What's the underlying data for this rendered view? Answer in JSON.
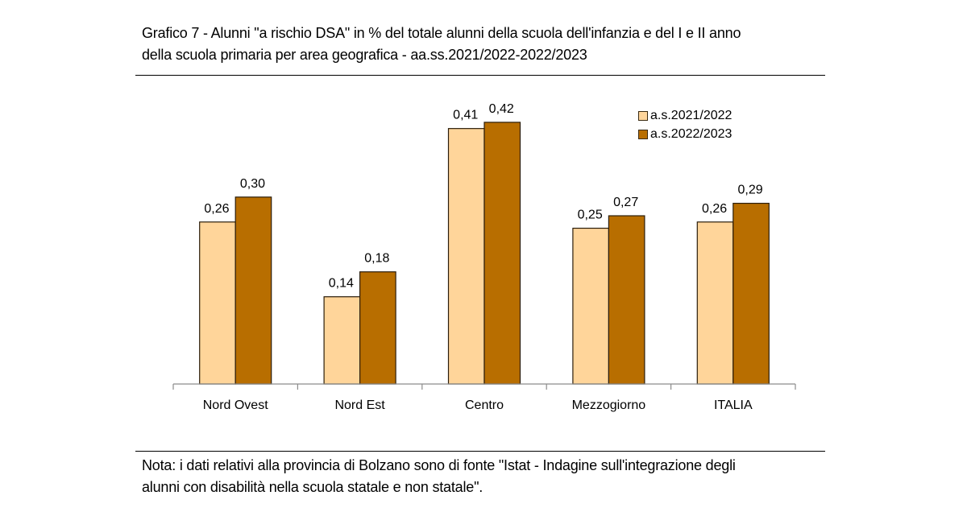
{
  "header": {
    "title_line1": "Grafico 7 - Alunni \"a rischio DSA\" in % del totale alunni della scuola dell'infanzia e del I e II anno",
    "title_line2": "della scuola primaria per area geografica - aa.ss.2021/2022-2022/2023"
  },
  "footer": {
    "note_line1": "Nota: i dati relativi alla provincia di Bolzano sono di fonte \"Istat - Indagine sull'integrazione degli",
    "note_line2": "alunni con disabilità nella scuola statale e non statale\"."
  },
  "chart_data": {
    "type": "bar",
    "title": "Grafico 7 - Alunni \"a rischio DSA\" in % del totale alunni della scuola dell'infanzia e del I e II anno della scuola primaria per area geografica - aa.ss.2021/2022-2022/2023",
    "xlabel": "",
    "ylabel": "",
    "ylim": [
      0,
      0.5
    ],
    "grid": false,
    "legend_position": "top-right",
    "categories": [
      "Nord Ovest",
      "Nord Est",
      "Centro",
      "Mezzogiorno",
      "ITALIA"
    ],
    "series": [
      {
        "name": "a.s.2021/2022",
        "color": "#FFD59A",
        "values": [
          0.26,
          0.14,
          0.41,
          0.25,
          0.26
        ],
        "labels": [
          "0,26",
          "0,14",
          "0,41",
          "0,25",
          "0,26"
        ]
      },
      {
        "name": "a.s.2022/2023",
        "color": "#B86E00",
        "values": [
          0.3,
          0.18,
          0.42,
          0.27,
          0.29
        ],
        "labels": [
          "0,30",
          "0,18",
          "0,42",
          "0,27",
          "0,29"
        ]
      }
    ]
  }
}
